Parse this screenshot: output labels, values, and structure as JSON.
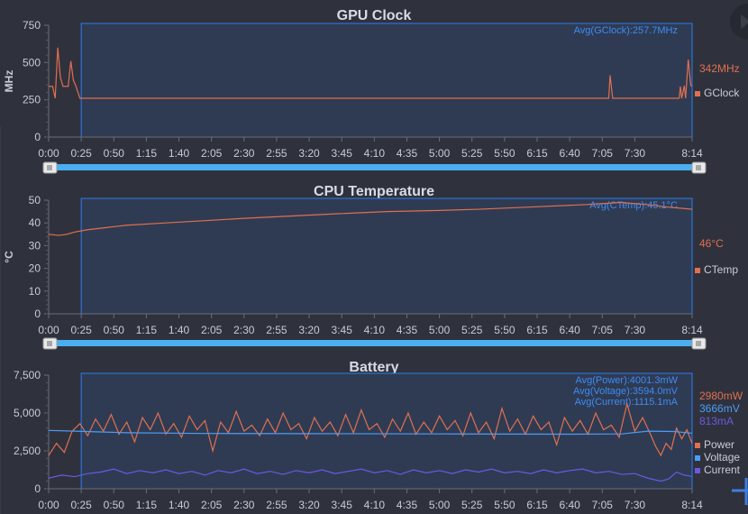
{
  "chart_data": [
    {
      "type": "line",
      "title": "GPU Clock",
      "ylabel": "MHz",
      "ylim": [
        0,
        750
      ],
      "yticks": [
        "0",
        "250",
        "500",
        "750"
      ],
      "xlim": [
        0,
        494
      ],
      "xticks": [
        "0:00",
        "0:25",
        "0:50",
        "1:15",
        "1:40",
        "2:05",
        "2:30",
        "2:55",
        "3:20",
        "3:45",
        "4:10",
        "4:35",
        "5:00",
        "5:25",
        "5:50",
        "6:15",
        "6:40",
        "7:05",
        "7:30",
        "8:14"
      ],
      "selection": [
        25,
        494
      ],
      "annotations": [
        "Avg(GClock):257.7MHz"
      ],
      "series": [
        {
          "name": "GClock",
          "color": "#e0704f",
          "current": "342MHz",
          "points": [
            [
              0,
              340
            ],
            [
              3,
              340
            ],
            [
              5,
              260
            ],
            [
              7,
              600
            ],
            [
              9,
              400
            ],
            [
              11,
              340
            ],
            [
              15,
              340
            ],
            [
              17,
              510
            ],
            [
              19,
              380
            ],
            [
              21,
              340
            ],
            [
              24,
              260
            ],
            [
              430,
              260
            ],
            [
              431,
              415
            ],
            [
              433,
              260
            ],
            [
              484,
              260
            ],
            [
              485,
              340
            ],
            [
              486,
              260
            ],
            [
              488,
              345
            ],
            [
              489,
              260
            ],
            [
              491,
              520
            ],
            [
              493,
              345
            ],
            [
              494,
              342
            ]
          ]
        }
      ]
    },
    {
      "type": "line",
      "title": "CPU Temperature",
      "ylabel": "°C",
      "ylim": [
        0,
        50
      ],
      "yticks": [
        "0",
        "10",
        "20",
        "30",
        "40",
        "50"
      ],
      "xlim": [
        0,
        494
      ],
      "xticks": [
        "0:00",
        "0:25",
        "0:50",
        "1:15",
        "1:40",
        "2:05",
        "2:30",
        "2:55",
        "3:20",
        "3:45",
        "4:10",
        "4:35",
        "5:00",
        "5:25",
        "5:50",
        "6:15",
        "6:40",
        "7:05",
        "7:30",
        "8:14"
      ],
      "selection": [
        25,
        494
      ],
      "annotations": [
        "Avg(CTemp):45.1°C"
      ],
      "series": [
        {
          "name": "CTemp",
          "color": "#e0704f",
          "current": "46°C",
          "points": [
            [
              0,
              35
            ],
            [
              8,
              34.5
            ],
            [
              14,
              35
            ],
            [
              20,
              36
            ],
            [
              30,
              37
            ],
            [
              45,
              38
            ],
            [
              60,
              39
            ],
            [
              90,
              40
            ],
            [
              120,
              41
            ],
            [
              150,
              42
            ],
            [
              185,
              43
            ],
            [
              220,
              44
            ],
            [
              260,
              45
            ],
            [
              300,
              45.5
            ],
            [
              330,
              46
            ],
            [
              370,
              47
            ],
            [
              410,
              48
            ],
            [
              440,
              49
            ],
            [
              460,
              48
            ],
            [
              475,
              47
            ],
            [
              494,
              46
            ]
          ]
        }
      ]
    },
    {
      "type": "line",
      "title": "Battery",
      "ylim": [
        0,
        7500
      ],
      "yticks": [
        "0",
        "2,500",
        "5,000",
        "7,500"
      ],
      "xlim": [
        0,
        494
      ],
      "xticks": [
        "0:00",
        "0:25",
        "0:50",
        "1:15",
        "1:40",
        "2:05",
        "2:30",
        "2:55",
        "3:20",
        "3:45",
        "4:10",
        "4:35",
        "5:00",
        "5:25",
        "5:50",
        "6:15",
        "6:40",
        "7:05",
        "7:30",
        "8:14"
      ],
      "selection": [
        25,
        494
      ],
      "annotations": [
        "Avg(Power):4001.3mW",
        "Avg(Voltage):3594.0mV",
        "Avg(Current):1115.1mA"
      ],
      "series": [
        {
          "name": "Power",
          "color": "#e0704f",
          "current": "2980mW",
          "points": [
            [
              0,
              2200
            ],
            [
              6,
              3000
            ],
            [
              12,
              2400
            ],
            [
              18,
              3800
            ],
            [
              24,
              4300
            ],
            [
              30,
              3500
            ],
            [
              36,
              4600
            ],
            [
              42,
              3800
            ],
            [
              48,
              4900
            ],
            [
              54,
              3600
            ],
            [
              60,
              4400
            ],
            [
              66,
              3100
            ],
            [
              72,
              4700
            ],
            [
              78,
              3900
            ],
            [
              84,
              5000
            ],
            [
              90,
              3600
            ],
            [
              96,
              4300
            ],
            [
              102,
              3400
            ],
            [
              108,
              4800
            ],
            [
              114,
              3900
            ],
            [
              120,
              4500
            ],
            [
              126,
              2500
            ],
            [
              132,
              4400
            ],
            [
              138,
              3700
            ],
            [
              144,
              5100
            ],
            [
              150,
              3800
            ],
            [
              156,
              4200
            ],
            [
              162,
              3500
            ],
            [
              168,
              4600
            ],
            [
              174,
              3700
            ],
            [
              180,
              5000
            ],
            [
              186,
              3900
            ],
            [
              192,
              4300
            ],
            [
              198,
              3300
            ],
            [
              204,
              4700
            ],
            [
              210,
              3800
            ],
            [
              216,
              4400
            ],
            [
              222,
              3500
            ],
            [
              228,
              4900
            ],
            [
              234,
              3700
            ],
            [
              240,
              5200
            ],
            [
              246,
              3900
            ],
            [
              252,
              4300
            ],
            [
              258,
              3400
            ],
            [
              264,
              4600
            ],
            [
              270,
              3800
            ],
            [
              276,
              5000
            ],
            [
              282,
              3600
            ],
            [
              288,
              4400
            ],
            [
              294,
              3700
            ],
            [
              300,
              4800
            ],
            [
              306,
              3900
            ],
            [
              312,
              4500
            ],
            [
              318,
              3500
            ],
            [
              324,
              5000
            ],
            [
              330,
              3700
            ],
            [
              336,
              4400
            ],
            [
              342,
              3300
            ],
            [
              348,
              5300
            ],
            [
              354,
              3800
            ],
            [
              360,
              4600
            ],
            [
              366,
              3600
            ],
            [
              372,
              4800
            ],
            [
              378,
              3900
            ],
            [
              384,
              4400
            ],
            [
              390,
              2900
            ],
            [
              396,
              4700
            ],
            [
              402,
              3800
            ],
            [
              408,
              4500
            ],
            [
              414,
              3600
            ],
            [
              420,
              5000
            ],
            [
              426,
              3900
            ],
            [
              432,
              4200
            ],
            [
              438,
              3400
            ],
            [
              444,
              5600
            ],
            [
              450,
              3800
            ],
            [
              456,
              4700
            ],
            [
              462,
              3600
            ],
            [
              466,
              2800
            ],
            [
              470,
              2200
            ],
            [
              474,
              3000
            ],
            [
              478,
              2600
            ],
            [
              482,
              4000
            ],
            [
              486,
              3300
            ],
            [
              490,
              3900
            ],
            [
              494,
              2980
            ]
          ]
        },
        {
          "name": "Voltage",
          "color": "#4d9cf5",
          "current": "3666mV",
          "points": [
            [
              0,
              3850
            ],
            [
              20,
              3800
            ],
            [
              60,
              3700
            ],
            [
              120,
              3650
            ],
            [
              200,
              3640
            ],
            [
              300,
              3620
            ],
            [
              400,
              3600
            ],
            [
              440,
              3620
            ],
            [
              460,
              3800
            ],
            [
              480,
              3780
            ],
            [
              494,
              3666
            ]
          ]
        },
        {
          "name": "Current",
          "color": "#6a5ae0",
          "current": "813mA",
          "points": [
            [
              0,
              700
            ],
            [
              10,
              900
            ],
            [
              20,
              800
            ],
            [
              30,
              1000
            ],
            [
              40,
              1100
            ],
            [
              50,
              1300
            ],
            [
              60,
              1000
            ],
            [
              70,
              1200
            ],
            [
              80,
              1050
            ],
            [
              90,
              1250
            ],
            [
              100,
              1000
            ],
            [
              110,
              1150
            ],
            [
              120,
              900
            ],
            [
              130,
              1200
            ],
            [
              140,
              1050
            ],
            [
              150,
              1300
            ],
            [
              160,
              1000
            ],
            [
              170,
              1150
            ],
            [
              180,
              950
            ],
            [
              190,
              1200
            ],
            [
              200,
              1050
            ],
            [
              210,
              1250
            ],
            [
              220,
              1000
            ],
            [
              230,
              1150
            ],
            [
              240,
              1300
            ],
            [
              250,
              1050
            ],
            [
              260,
              1200
            ],
            [
              270,
              950
            ],
            [
              280,
              1250
            ],
            [
              290,
              1050
            ],
            [
              300,
              1200
            ],
            [
              310,
              1000
            ],
            [
              320,
              1250
            ],
            [
              330,
              1100
            ],
            [
              340,
              1300
            ],
            [
              350,
              1050
            ],
            [
              360,
              1150
            ],
            [
              370,
              1000
            ],
            [
              380,
              1250
            ],
            [
              390,
              1050
            ],
            [
              400,
              1200
            ],
            [
              410,
              1300
            ],
            [
              420,
              1050
            ],
            [
              430,
              1150
            ],
            [
              440,
              950
            ],
            [
              450,
              1000
            ],
            [
              460,
              700
            ],
            [
              470,
              500
            ],
            [
              476,
              650
            ],
            [
              482,
              1100
            ],
            [
              488,
              900
            ],
            [
              494,
              813
            ]
          ]
        }
      ]
    }
  ]
}
